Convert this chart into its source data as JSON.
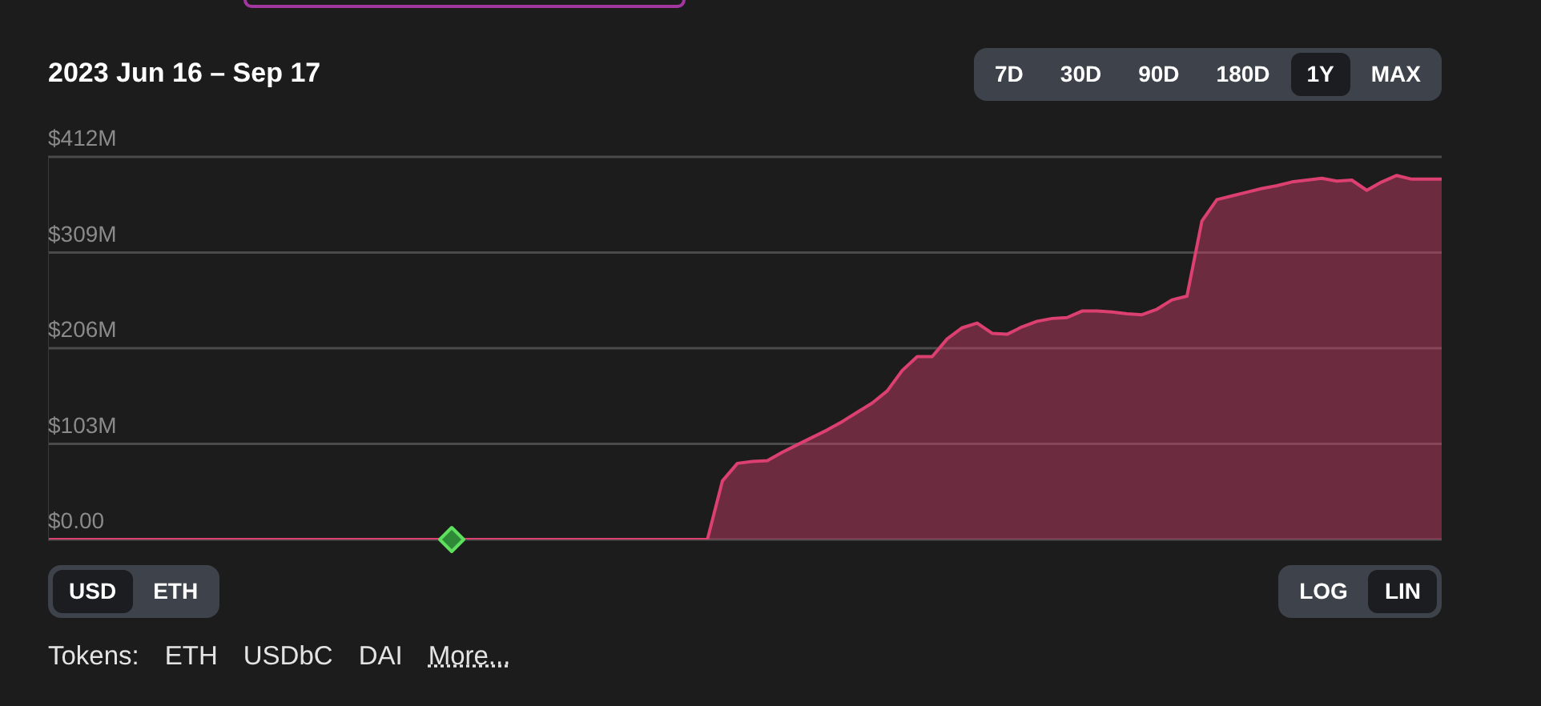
{
  "chart_data": {
    "type": "area",
    "title": "2023 Jun 16 – Sep 17",
    "categories": [
      null,
      null,
      null,
      null,
      null,
      null,
      null,
      null,
      null,
      null,
      null,
      null,
      null,
      null,
      null,
      null,
      null,
      null,
      null,
      null,
      null,
      null,
      null,
      null,
      null,
      null,
      null,
      null,
      null,
      null,
      null,
      null,
      null,
      null,
      null,
      null,
      null,
      null,
      null,
      null,
      null,
      null,
      null,
      null,
      null,
      null,
      null,
      null,
      null,
      null,
      null,
      null,
      null,
      null,
      null,
      null,
      null,
      null,
      null,
      null,
      null,
      null,
      null,
      null,
      null,
      null,
      null,
      null,
      null,
      null,
      null,
      null,
      null,
      null,
      null,
      null,
      null,
      null,
      null,
      null,
      null,
      null,
      null,
      null,
      null,
      null,
      null,
      null,
      null,
      null,
      null,
      null,
      null,
      null
    ],
    "values": [
      0,
      0,
      0,
      0,
      0,
      0,
      0,
      0,
      0,
      0,
      0,
      0,
      0,
      0,
      0,
      0,
      0,
      0,
      0,
      0,
      0,
      0,
      0,
      0,
      0,
      0,
      0,
      0,
      0,
      0,
      0,
      0,
      0,
      0,
      0,
      0,
      0,
      0,
      0,
      0,
      0,
      0,
      0,
      0,
      0,
      63,
      82,
      84,
      85,
      94,
      102,
      110,
      118,
      127,
      137,
      147,
      160,
      182,
      197,
      197,
      216,
      228,
      233,
      222,
      221,
      229,
      235,
      238,
      239,
      246,
      246,
      245,
      243,
      242,
      248,
      258,
      262,
      343,
      366,
      370,
      374,
      378,
      381,
      385,
      387,
      389,
      386,
      387,
      376,
      385,
      392,
      388,
      388,
      388
    ],
    "color": "#dc4070",
    "ylim": [
      0,
      412
    ],
    "yticks": [
      {
        "value": 0,
        "label": "$0.00"
      },
      {
        "value": 103,
        "label": "$103M"
      },
      {
        "value": 206,
        "label": "$206M"
      },
      {
        "value": 309,
        "label": "$309M"
      },
      {
        "value": 412,
        "label": "$412M"
      }
    ],
    "grid": "y",
    "annotations": [
      "7D",
      "30D",
      "90D",
      "180D",
      "1Y",
      "MAX",
      "USD",
      "ETH",
      "LOG",
      "LIN",
      "Tokens:",
      "ETH",
      "USDbC",
      "DAI",
      "More..."
    ]
  }
}
